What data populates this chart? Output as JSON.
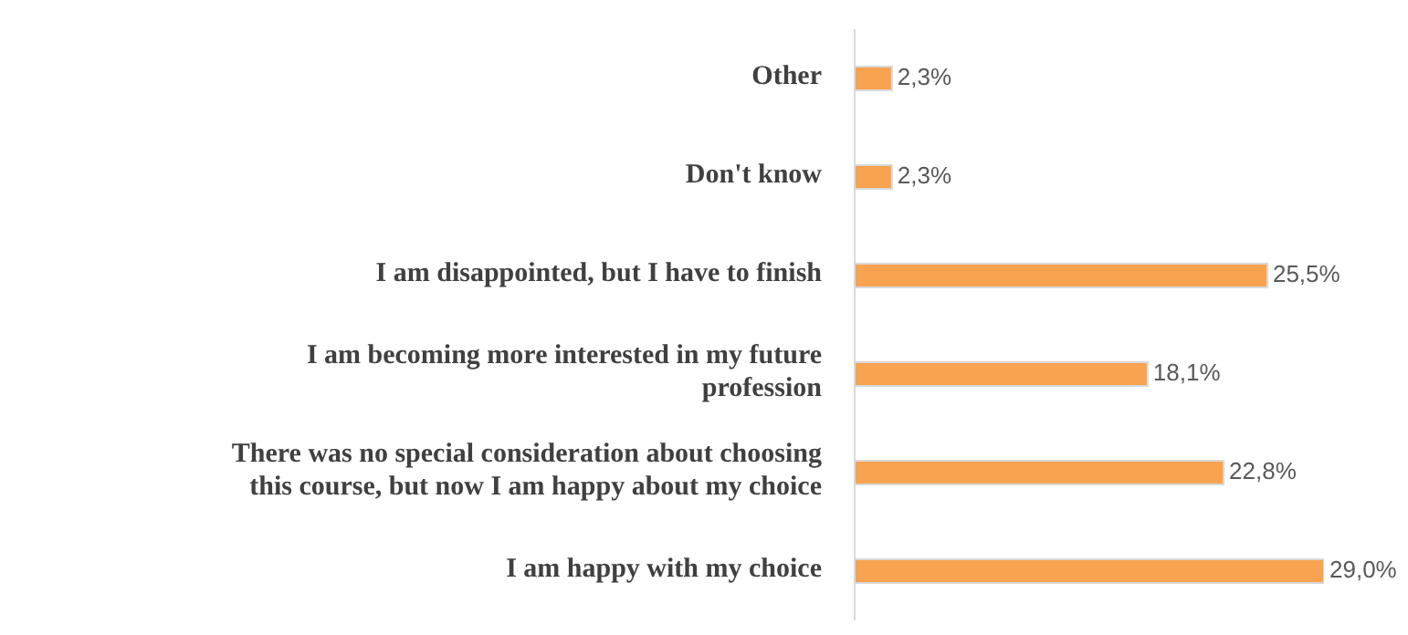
{
  "chart_data": {
    "type": "bar",
    "orientation": "horizontal",
    "categories": [
      "Other",
      "Don't know",
      "I am disappointed, but I have to finish",
      "I am becoming more interested in my future profession",
      "There was no special consideration about choosing this course, but now I am happy about my choice",
      "I am happy with my choice"
    ],
    "values": [
      2.3,
      2.3,
      25.5,
      18.1,
      22.8,
      29.0
    ],
    "value_labels": [
      "2,3%",
      "2,3%",
      "25,5%",
      "18,1%",
      "22,8%",
      "29,0%"
    ],
    "color": "#f7a350",
    "tick_labels": "y",
    "grid": false,
    "legend": false
  }
}
